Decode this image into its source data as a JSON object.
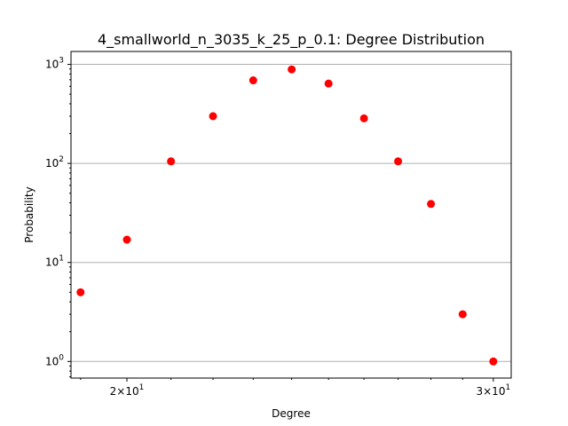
{
  "chart_data": {
    "type": "scatter",
    "title": "4_smallworld_n_3035_k_25_p_0.1: Degree Distribution",
    "xlabel": "Degree",
    "ylabel": "Probability",
    "x_scale": "log",
    "y_scale": "log",
    "xlim": [
      18.8,
      30.6
    ],
    "ylim": [
      0.68,
      1350
    ],
    "grid": "y-major",
    "x_ticks": [
      {
        "value": 20,
        "base": "2",
        "exp": "1"
      },
      {
        "value": 30,
        "base": "3",
        "exp": "1"
      }
    ],
    "y_ticks": [
      {
        "value": 1,
        "base": "10",
        "exp": "0"
      },
      {
        "value": 10,
        "base": "10",
        "exp": "1"
      },
      {
        "value": 100,
        "base": "10",
        "exp": "2"
      },
      {
        "value": 1000,
        "base": "10",
        "exp": "3"
      }
    ],
    "color": "#ff0000",
    "points": [
      {
        "x": 19,
        "y": 5
      },
      {
        "x": 20,
        "y": 17
      },
      {
        "x": 21,
        "y": 105
      },
      {
        "x": 22,
        "y": 300
      },
      {
        "x": 23,
        "y": 690
      },
      {
        "x": 24,
        "y": 890
      },
      {
        "x": 25,
        "y": 640
      },
      {
        "x": 26,
        "y": 285
      },
      {
        "x": 27,
        "y": 105
      },
      {
        "x": 28,
        "y": 39
      },
      {
        "x": 29,
        "y": 3
      },
      {
        "x": 30,
        "y": 1
      }
    ]
  }
}
